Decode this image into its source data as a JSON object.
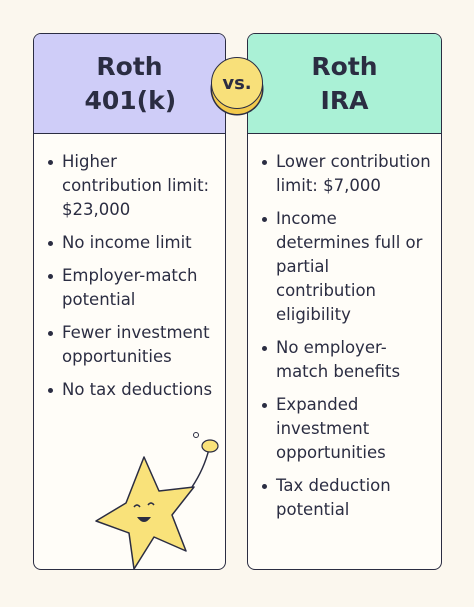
{
  "left": {
    "title": "Roth 401(k)",
    "items": [
      "Higher contribution limit: $23,000",
      "No income limit",
      "Employer-match potential",
      "Fewer investment opportunities",
      "No tax deductions"
    ]
  },
  "vs": "vs.",
  "right": {
    "title": "Roth IRA",
    "items": [
      "Lower contribution limit: $7,000",
      "Income determines full or partial contribution eligibility",
      "No employer-match benefits",
      "Expanded investment opportunities",
      "Tax deduction potential"
    ]
  }
}
